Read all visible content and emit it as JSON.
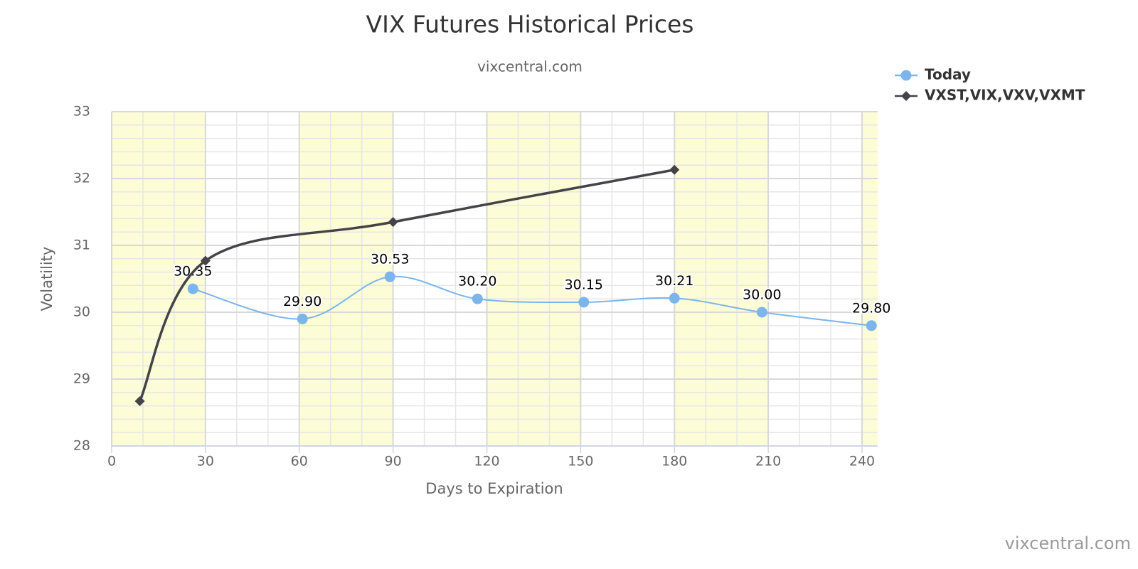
{
  "chart_data": {
    "type": "line",
    "title": "VIX Futures Historical Prices",
    "subtitle": "vixcentral.com",
    "credits": "vixcentral.com",
    "x_label": "Days to Expiration",
    "y_label": "Volatility",
    "xlim": [
      0,
      245
    ],
    "xticks": [
      0,
      30,
      60,
      90,
      120,
      150,
      180,
      210,
      240
    ],
    "ylim": [
      28,
      33
    ],
    "yticks": [
      28,
      29,
      30,
      31,
      32,
      33
    ],
    "minor_x_interval": 10,
    "minor_y_interval": 0.2,
    "plot_bands": [
      [
        0,
        30
      ],
      [
        60,
        90
      ],
      [
        120,
        150
      ],
      [
        180,
        210
      ],
      [
        240,
        245
      ]
    ],
    "band_color": "#fcfcd6",
    "grid": true,
    "smooth": true,
    "legend": "top-right",
    "series": [
      {
        "name": "Today",
        "color": "#7cb5ec",
        "marker": "circle",
        "x": [
          26,
          61,
          89,
          117,
          151,
          180,
          208,
          243
        ],
        "values": [
          30.35,
          29.9,
          30.53,
          30.2,
          30.15,
          30.21,
          30.0,
          29.8
        ],
        "value_labels": [
          "30.35",
          "29.90",
          "30.53",
          "30.20",
          "30.15",
          "30.21",
          "30.00",
          "29.80"
        ]
      },
      {
        "name": "VXST,VIX,VXV,VXMT",
        "color": "#434348",
        "marker": "diamond",
        "x": [
          9,
          30,
          90,
          180
        ],
        "values": [
          28.67,
          30.77,
          31.35,
          32.13
        ]
      }
    ]
  }
}
